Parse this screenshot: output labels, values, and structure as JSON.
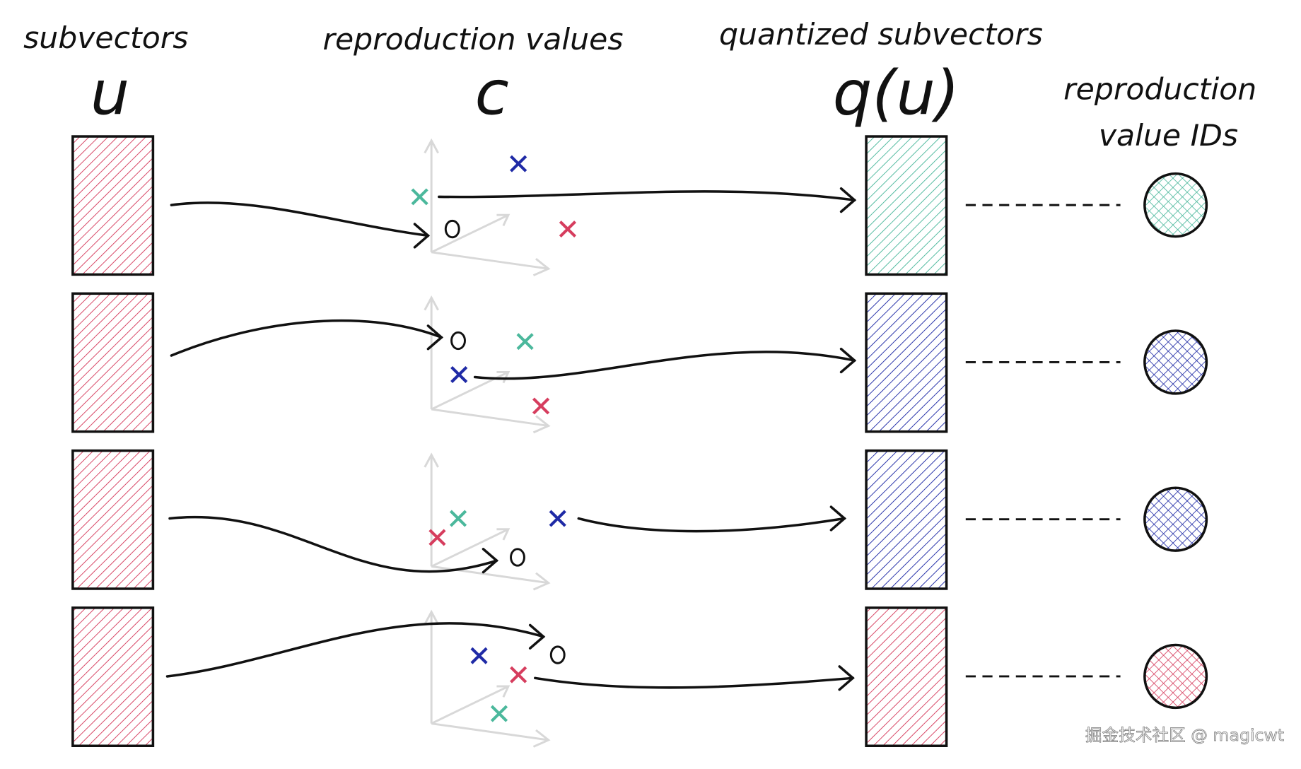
{
  "headers": {
    "subvectors": "subvectors",
    "subvectors_symbol": "u",
    "reproduction_values": "reproduction values",
    "reproduction_symbol": "c",
    "quantized": "quantized subvectors",
    "quantized_symbol": "q(u)",
    "ids_line1": "reproduction",
    "ids_line2": "value IDs"
  },
  "colors": {
    "red": "#d63d5e",
    "teal": "#4bb89c",
    "blue": "#1f2aa6",
    "ink": "#111111",
    "axis": "#d8d8d8"
  },
  "rows": [
    {
      "input_color": "red",
      "quantized_color": "teal",
      "id_color": "teal"
    },
    {
      "input_color": "red",
      "quantized_color": "blue",
      "id_color": "blue"
    },
    {
      "input_color": "red",
      "quantized_color": "blue",
      "id_color": "blue"
    },
    {
      "input_color": "red",
      "quantized_color": "red",
      "id_color": "red"
    }
  ],
  "watermark": "掘金技术社区 @ magicwt"
}
